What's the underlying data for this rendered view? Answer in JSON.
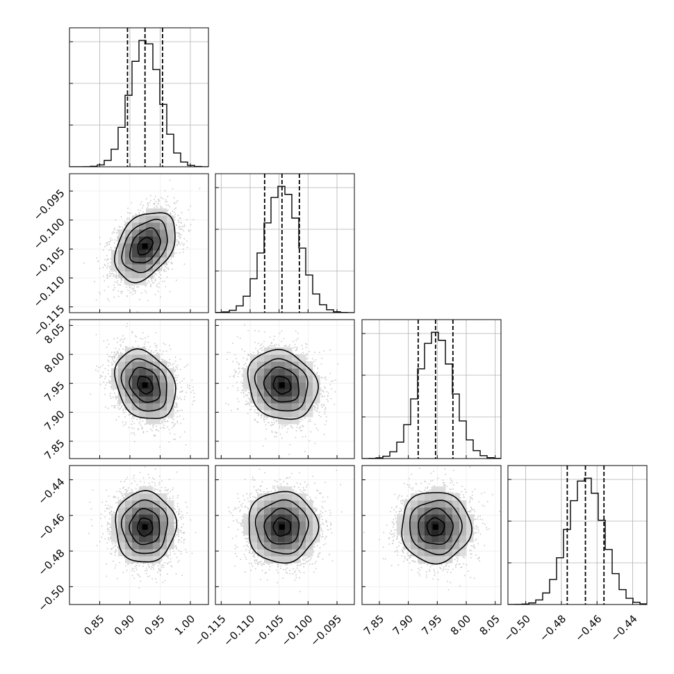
{
  "chart_data": {
    "type": "corner",
    "n_params": 4,
    "grid": true,
    "params": [
      {
        "range": [
          0.8,
          1.03
        ],
        "mean": 0.925,
        "sd": 0.025,
        "quantiles": [
          0.896,
          0.925,
          0.954
        ],
        "ticks": [
          0.85,
          0.9,
          0.95,
          1.0
        ],
        "tick_labels": [
          "0.85",
          "0.90",
          "0.95",
          "1.00"
        ],
        "hist_peak": [
          0.92,
          0.94
        ]
      },
      {
        "range": [
          -0.116,
          -0.092
        ],
        "mean": -0.1045,
        "sd": 0.003,
        "quantiles": [
          -0.1075,
          -0.1045,
          -0.1015
        ],
        "ticks": [
          -0.115,
          -0.11,
          -0.105,
          -0.1,
          -0.095
        ],
        "tick_labels": [
          "−0.115",
          "−0.110",
          "−0.105",
          "−0.100",
          "−0.095"
        ],
        "hist_peak": [
          -0.105,
          -0.104
        ]
      },
      {
        "range": [
          7.82,
          8.06
        ],
        "mean": 7.947,
        "sd": 0.03,
        "quantiles": [
          7.917,
          7.947,
          7.977
        ],
        "ticks": [
          7.85,
          7.9,
          7.95,
          8.0,
          8.05
        ],
        "tick_labels": [
          "7.85",
          "7.90",
          "7.95",
          "8.00",
          "8.05"
        ],
        "hist_peak": [
          7.945,
          7.953
        ]
      },
      {
        "range": [
          -0.51,
          -0.432
        ],
        "mean": -0.4665,
        "sd": 0.01,
        "quantiles": [
          -0.4767,
          -0.4665,
          -0.4561
        ],
        "ticks": [
          -0.5,
          -0.48,
          -0.46,
          -0.44
        ],
        "tick_labels": [
          "−0.50",
          "−0.48",
          "−0.46",
          "−0.44"
        ],
        "hist_peak": [
          -0.468,
          -0.465
        ]
      }
    ],
    "correlations": [
      [
        1,
        0.35,
        -0.25,
        0.0
      ],
      [
        0.35,
        1,
        -0.15,
        0.0
      ],
      [
        -0.25,
        -0.15,
        1,
        0.0
      ],
      [
        0.0,
        0.0,
        0.0,
        1
      ]
    ],
    "contour_levels_sigma": [
      0.5,
      1.0,
      1.5,
      2.0
    ],
    "hist_bins": 20,
    "points_per_panel": 3500,
    "colors": {
      "line": "#000000",
      "points": "#aaaaaa",
      "grid": "#b0b0b0",
      "background": "#ffffff"
    }
  }
}
